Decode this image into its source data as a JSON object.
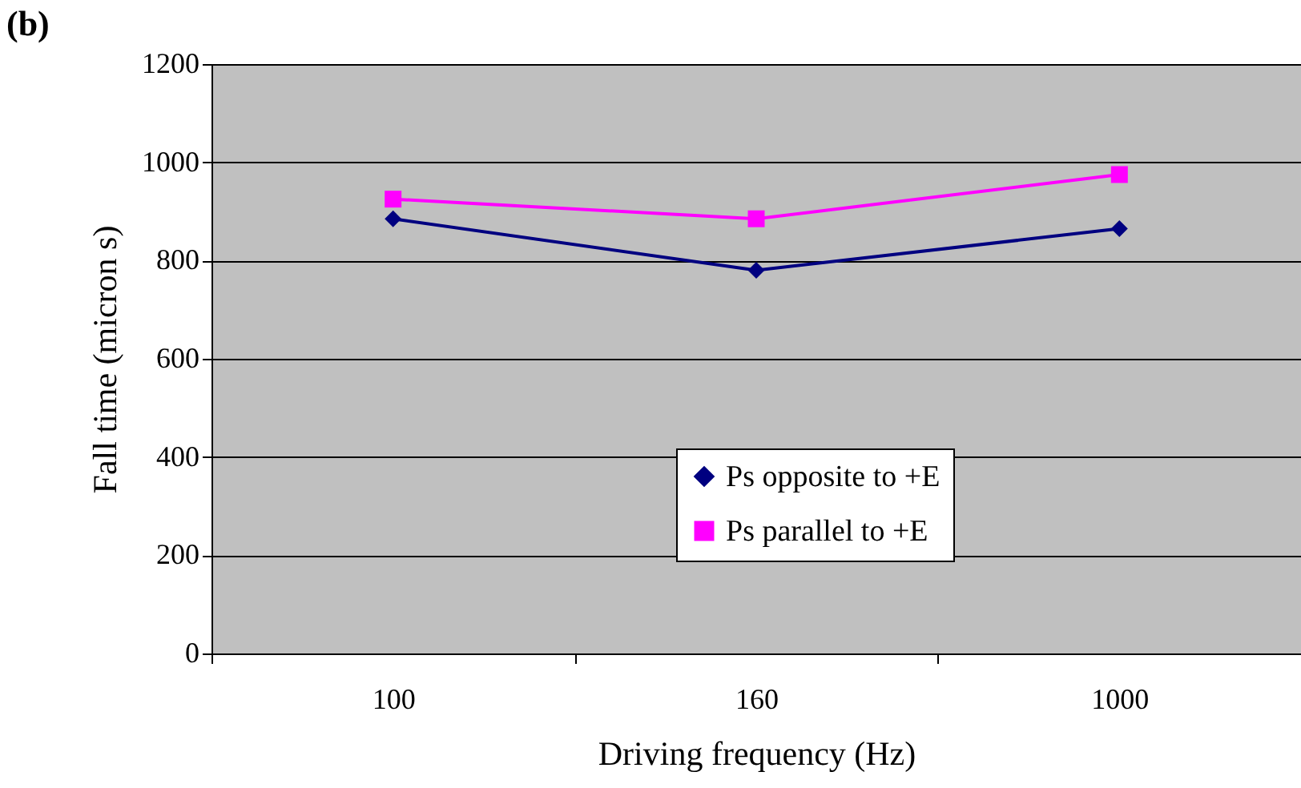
{
  "chart_data": {
    "type": "line",
    "title": "(b)",
    "xlabel": "Driving frequency (Hz)",
    "ylabel": "Fall time (micron s)",
    "categories": [
      "100",
      "160",
      "1000"
    ],
    "series": [
      {
        "name": "Ps opposite to +E",
        "color": "#000080",
        "marker": "diamond",
        "values": [
          885,
          780,
          865
        ]
      },
      {
        "name": "Ps parallel to +E",
        "color": "#ff00ff",
        "marker": "square",
        "values": [
          925,
          885,
          975
        ]
      }
    ],
    "ylim": [
      0,
      1200
    ],
    "yticks": [
      0,
      200,
      400,
      600,
      800,
      1000,
      1200
    ],
    "grid": "y",
    "legend": "bottom right"
  }
}
